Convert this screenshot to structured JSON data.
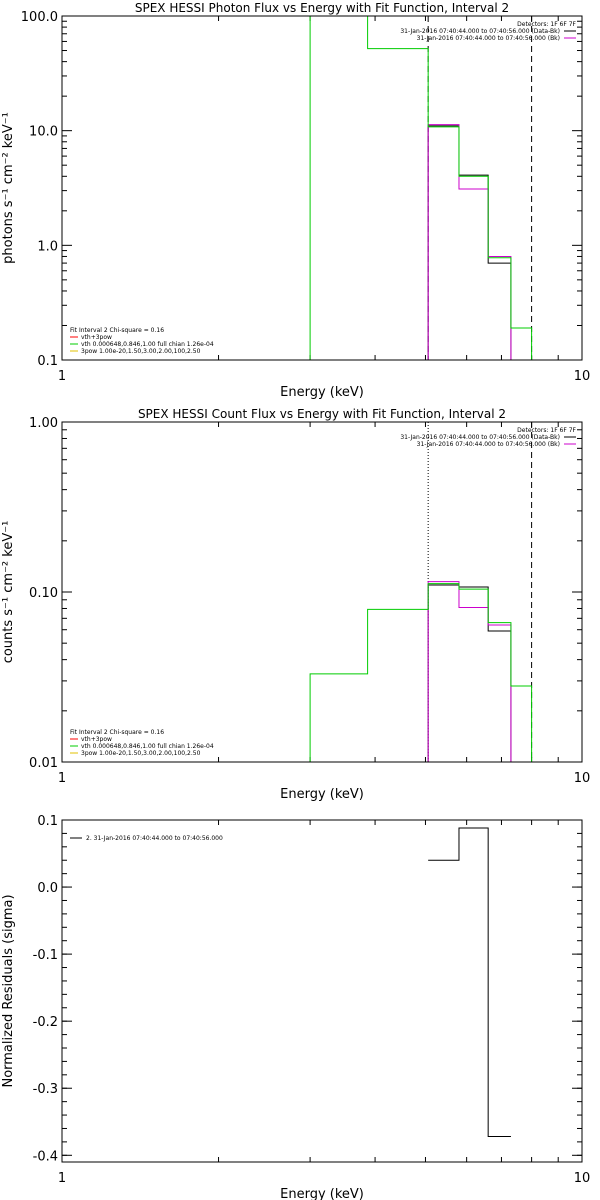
{
  "chart_data": [
    {
      "type": "line",
      "title": "SPEX HESSI Photon Flux vs Energy with Fit Function, Interval 2",
      "xlabel": "Energy (keV)",
      "ylabel": "photons s⁻¹ cm⁻² keV⁻¹",
      "xscale": "log",
      "yscale": "log",
      "xlim": [
        1,
        10
      ],
      "ylim": [
        0.1,
        100
      ],
      "xticks": [
        {
          "v": 1,
          "label": "1"
        },
        {
          "v": 10,
          "label": "10"
        }
      ],
      "yticks": [
        {
          "v": 0.1,
          "label": "0.1"
        },
        {
          "v": 1,
          "label": "1.0"
        },
        {
          "v": 10,
          "label": "10.0"
        },
        {
          "v": 100,
          "label": "100.0"
        }
      ],
      "vlines": [
        {
          "x": 5.06,
          "style": "dashed"
        },
        {
          "x": 8.0,
          "style": "dashed"
        }
      ],
      "top_legend": {
        "header": "Detectors: 1F 6F 7F",
        "items": [
          {
            "text": "31-Jan-2016 07:40:44.000 to 07:40:56.000 (Data-Bk)",
            "color": "#000000"
          },
          {
            "text": "31-Jan-2016 07:40:44.000 to 07:40:56.000 (Bk)",
            "color": "#cc00cc"
          }
        ]
      },
      "fit_legend": {
        "header": "Fit Interval 2   Chi-square = 0.16",
        "items": [
          {
            "text": "vth+3pow",
            "color": "#ff0000"
          },
          {
            "text": "vth 0.000648,0.846,1.00  full chian 1.26e-04",
            "color": "#00cc00"
          },
          {
            "text": "3pow 1.00e-20,1.50,3.00,2.00,100,2.50",
            "color": "#e0c000"
          }
        ]
      },
      "series": [
        {
          "color": "#000000",
          "edges": [
            5.06,
            5.8,
            6.6,
            7.3,
            8.0
          ],
          "values": [
            11.0,
            4.1,
            0.7,
            0.1
          ]
        },
        {
          "color": "#cc00cc",
          "edges": [
            5.06,
            5.8,
            6.6,
            7.3,
            8.0
          ],
          "values": [
            11.3,
            3.1,
            0.8,
            0.1
          ]
        },
        {
          "color": "#00cc00",
          "edges": [
            3.0,
            3.87,
            5.06,
            5.8,
            6.6,
            7.3,
            8.0,
            9.2
          ],
          "values": [
            100,
            52,
            10.8,
            4.0,
            0.78,
            0.19,
            0.1
          ]
        }
      ]
    },
    {
      "type": "line",
      "title": "SPEX HESSI Count Flux vs Energy with Fit Function, Interval 2",
      "xlabel": "Energy (keV)",
      "ylabel": "counts s⁻¹ cm⁻² keV⁻¹",
      "xscale": "log",
      "yscale": "log",
      "xlim": [
        1,
        10
      ],
      "ylim": [
        0.01,
        1
      ],
      "xticks": [
        {
          "v": 1,
          "label": "1"
        },
        {
          "v": 10,
          "label": "10"
        }
      ],
      "yticks": [
        {
          "v": 0.01,
          "label": "0.01"
        },
        {
          "v": 0.1,
          "label": "0.10"
        },
        {
          "v": 1,
          "label": "1.00"
        }
      ],
      "vlines": [
        {
          "x": 5.06,
          "style": "dotted"
        },
        {
          "x": 8.0,
          "style": "dashed"
        }
      ],
      "top_legend": {
        "header": "Detectors: 1F 6F 7F",
        "items": [
          {
            "text": "31-Jan-2016 07:40:44.000 to 07:40:56.000 (Data-Bk)",
            "color": "#000000"
          },
          {
            "text": "31-Jan-2016 07:40:44.000 to 07:40:56.000 (Bk)",
            "color": "#cc00cc"
          }
        ]
      },
      "fit_legend": {
        "header": "Fit Interval 2   Chi-square = 0.16",
        "items": [
          {
            "text": "vth+3pow",
            "color": "#ff0000"
          },
          {
            "text": "vth 0.000648,0.846,1.00  full chian 1.26e-04",
            "color": "#00cc00"
          },
          {
            "text": "3pow 1.00e-20,1.50,3.00,2.00,100,2.50",
            "color": "#e0c000"
          }
        ]
      },
      "series": [
        {
          "color": "#000000",
          "edges": [
            5.06,
            5.8,
            6.6,
            7.3,
            8.0
          ],
          "values": [
            0.11,
            0.107,
            0.059,
            0.01
          ]
        },
        {
          "color": "#cc00cc",
          "edges": [
            5.06,
            5.8,
            6.6,
            7.3,
            8.0
          ],
          "values": [
            0.115,
            0.081,
            0.064,
            0.01
          ]
        },
        {
          "color": "#00cc00",
          "edges": [
            3.0,
            3.87,
            5.06,
            5.8,
            6.6,
            7.3,
            8.0,
            9.2,
            10.0
          ],
          "values": [
            0.033,
            0.079,
            0.112,
            0.104,
            0.066,
            0.028,
            0.01,
            0.01
          ]
        }
      ]
    },
    {
      "type": "line",
      "title": "",
      "xlabel": "Energy (keV)",
      "ylabel": "Normalized Residuals (sigma)",
      "xscale": "log",
      "yscale": "linear",
      "xlim": [
        1,
        10
      ],
      "ylim": [
        -0.41,
        0.1
      ],
      "xticks": [
        {
          "v": 1,
          "label": "1"
        },
        {
          "v": 10,
          "label": "10"
        }
      ],
      "yticks": [
        {
          "v": 0.1,
          "label": "0.1"
        },
        {
          "v": 0.0,
          "label": "0.0"
        },
        {
          "v": -0.1,
          "label": "-0.1"
        },
        {
          "v": -0.2,
          "label": "-0.2"
        },
        {
          "v": -0.3,
          "label": "-0.3"
        },
        {
          "v": -0.4,
          "label": "-0.4"
        }
      ],
      "vlines": [],
      "top_legend": {
        "header": "",
        "items": [
          {
            "text": "2. 31-Jan-2016 07:40:44.000 to 07:40:56.000",
            "color": "#000000"
          }
        ]
      },
      "fit_legend": {
        "header": "",
        "items": []
      },
      "series": [
        {
          "color": "#000000",
          "edges": [
            5.06,
            5.8,
            6.6,
            7.3
          ],
          "values": [
            0.04,
            0.088,
            -0.372
          ]
        }
      ]
    }
  ]
}
